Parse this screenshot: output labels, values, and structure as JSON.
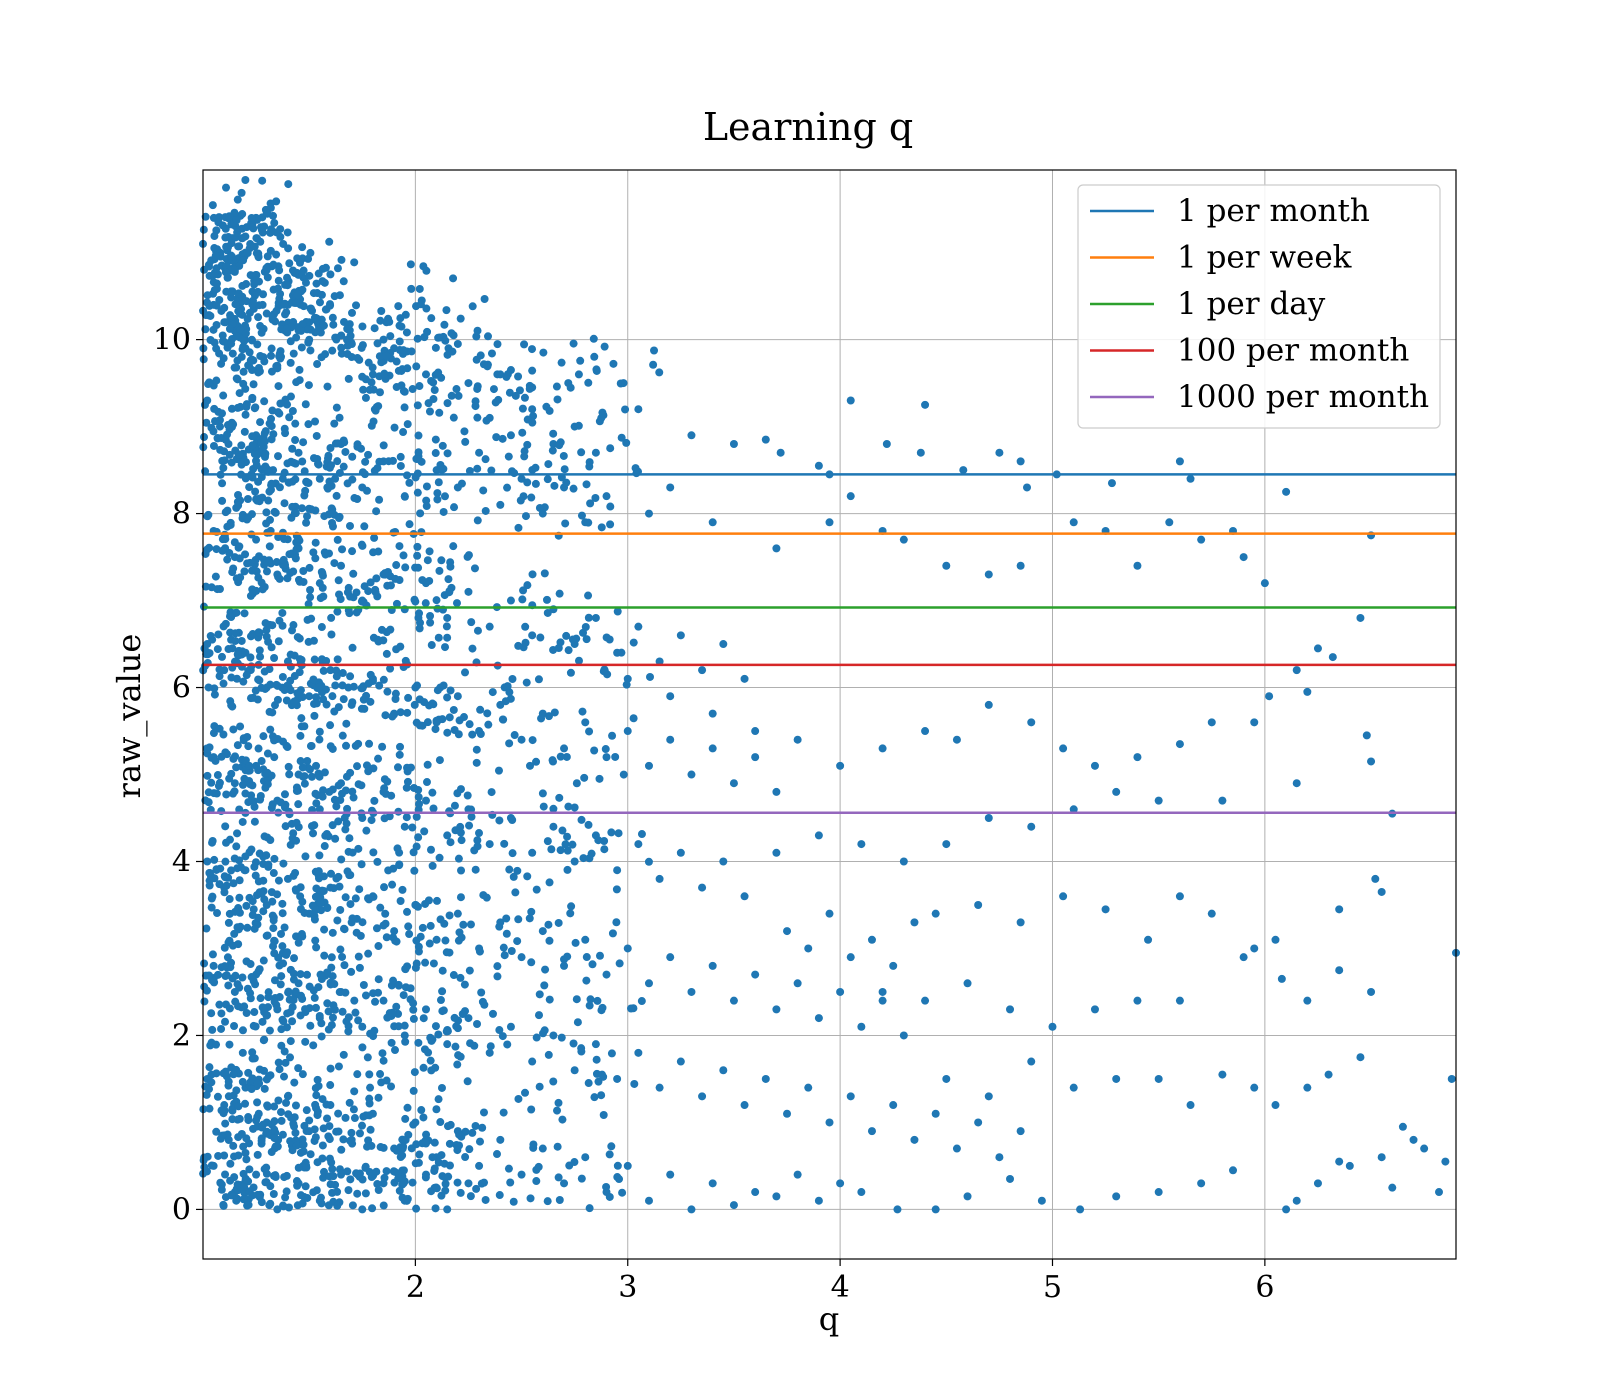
{
  "chart_data": {
    "type": "scatter",
    "title": "Learning q",
    "xlabel": "q",
    "ylabel": "raw_value",
    "xlim": [
      1.0,
      6.9
    ],
    "ylim": [
      -0.57,
      11.95
    ],
    "xticks": [
      2,
      3,
      4,
      5,
      6
    ],
    "yticks": [
      0,
      2,
      4,
      6,
      8,
      10
    ],
    "grid": true,
    "legend_position": "top-right",
    "scatter_color": "#1f77b4",
    "points": [
      [
        1.0,
        11.1
      ],
      [
        1.08,
        11.0
      ],
      [
        1.2,
        11.0
      ],
      [
        1.25,
        11.4
      ],
      [
        1.22,
        11.05
      ],
      [
        1.14,
        10.8
      ],
      [
        1.3,
        10.8
      ],
      [
        1.6,
        10.75
      ],
      [
        2.03,
        10.45
      ],
      [
        2.18,
        10.05
      ],
      [
        2.2,
        9.95
      ],
      [
        1.85,
        10.0
      ],
      [
        1.9,
        9.9
      ],
      [
        2.05,
        9.6
      ],
      [
        2.25,
        9.5
      ],
      [
        2.4,
        9.6
      ],
      [
        2.45,
        9.65
      ],
      [
        2.55,
        9.45
      ],
      [
        2.72,
        9.5
      ],
      [
        2.77,
        9.6
      ],
      [
        2.98,
        9.5
      ],
      [
        3.05,
        9.2
      ],
      [
        3.3,
        8.9
      ],
      [
        3.5,
        8.8
      ],
      [
        3.65,
        8.85
      ],
      [
        3.72,
        8.7
      ],
      [
        3.9,
        8.55
      ],
      [
        3.95,
        8.45
      ],
      [
        4.05,
        9.3
      ],
      [
        4.22,
        8.8
      ],
      [
        4.4,
        9.25
      ],
      [
        4.38,
        8.7
      ],
      [
        4.58,
        8.5
      ],
      [
        4.75,
        8.7
      ],
      [
        4.85,
        8.6
      ],
      [
        4.88,
        8.3
      ],
      [
        5.02,
        8.45
      ],
      [
        5.28,
        8.35
      ],
      [
        5.6,
        8.6
      ],
      [
        5.65,
        8.4
      ],
      [
        6.1,
        8.25
      ],
      [
        3.1,
        8.0
      ],
      [
        3.2,
        8.3
      ],
      [
        3.4,
        7.9
      ],
      [
        3.7,
        7.6
      ],
      [
        3.95,
        7.9
      ],
      [
        4.05,
        8.2
      ],
      [
        4.2,
        7.8
      ],
      [
        4.3,
        7.7
      ],
      [
        4.5,
        7.4
      ],
      [
        4.7,
        7.3
      ],
      [
        4.85,
        7.4
      ],
      [
        5.1,
        7.9
      ],
      [
        5.25,
        7.8
      ],
      [
        5.4,
        7.4
      ],
      [
        5.55,
        7.9
      ],
      [
        5.7,
        7.7
      ],
      [
        5.85,
        7.8
      ],
      [
        5.9,
        7.5
      ],
      [
        6.0,
        7.2
      ],
      [
        6.5,
        7.75
      ],
      [
        6.45,
        6.8
      ],
      [
        6.25,
        6.45
      ],
      [
        6.32,
        6.35
      ],
      [
        6.15,
        6.2
      ],
      [
        6.2,
        5.95
      ],
      [
        6.02,
        5.9
      ],
      [
        5.95,
        5.6
      ],
      [
        5.75,
        5.6
      ],
      [
        5.6,
        5.35
      ],
      [
        5.4,
        5.2
      ],
      [
        5.2,
        5.1
      ],
      [
        5.05,
        5.3
      ],
      [
        4.9,
        5.6
      ],
      [
        4.7,
        5.8
      ],
      [
        4.55,
        5.4
      ],
      [
        4.4,
        5.5
      ],
      [
        4.2,
        5.3
      ],
      [
        4.0,
        5.1
      ],
      [
        3.8,
        5.4
      ],
      [
        3.6,
        5.5
      ],
      [
        3.4,
        5.7
      ],
      [
        3.2,
        5.9
      ],
      [
        3.0,
        6.1
      ],
      [
        6.48,
        5.45
      ],
      [
        6.5,
        5.15
      ],
      [
        6.15,
        4.9
      ],
      [
        5.8,
        4.7
      ],
      [
        5.5,
        4.7
      ],
      [
        5.3,
        4.8
      ],
      [
        5.1,
        4.6
      ],
      [
        4.9,
        4.4
      ],
      [
        4.7,
        4.5
      ],
      [
        4.5,
        4.2
      ],
      [
        4.3,
        4.0
      ],
      [
        4.1,
        4.2
      ],
      [
        3.9,
        4.3
      ],
      [
        3.7,
        4.1
      ],
      [
        6.6,
        4.55
      ],
      [
        6.52,
        3.8
      ],
      [
        6.55,
        3.65
      ],
      [
        6.35,
        3.45
      ],
      [
        6.05,
        3.1
      ],
      [
        5.95,
        3.0
      ],
      [
        5.75,
        3.4
      ],
      [
        5.6,
        3.6
      ],
      [
        5.45,
        3.1
      ],
      [
        5.25,
        3.45
      ],
      [
        5.05,
        3.6
      ],
      [
        4.85,
        3.3
      ],
      [
        4.65,
        3.5
      ],
      [
        4.45,
        3.4
      ],
      [
        6.9,
        2.95
      ],
      [
        6.5,
        2.5
      ],
      [
        6.35,
        2.75
      ],
      [
        6.2,
        2.4
      ],
      [
        6.08,
        2.65
      ],
      [
        5.9,
        2.9
      ],
      [
        5.6,
        2.4
      ],
      [
        5.4,
        2.4
      ],
      [
        5.2,
        2.3
      ],
      [
        5.0,
        2.1
      ],
      [
        4.8,
        2.3
      ],
      [
        4.6,
        2.6
      ],
      [
        4.4,
        2.4
      ],
      [
        4.2,
        2.5
      ],
      [
        6.88,
        1.5
      ],
      [
        6.45,
        1.75
      ],
      [
        6.3,
        1.55
      ],
      [
        6.2,
        1.4
      ],
      [
        6.05,
        1.2
      ],
      [
        5.95,
        1.4
      ],
      [
        5.8,
        1.55
      ],
      [
        5.65,
        1.2
      ],
      [
        5.5,
        1.5
      ],
      [
        5.3,
        1.5
      ],
      [
        5.1,
        1.4
      ],
      [
        4.9,
        1.7
      ],
      [
        4.7,
        1.3
      ],
      [
        4.5,
        1.5
      ],
      [
        6.65,
        0.95
      ],
      [
        6.7,
        0.8
      ],
      [
        6.75,
        0.7
      ],
      [
        6.85,
        0.55
      ],
      [
        6.55,
        0.6
      ],
      [
        6.4,
        0.5
      ],
      [
        6.35,
        0.55
      ],
      [
        6.25,
        0.3
      ],
      [
        6.15,
        0.1
      ],
      [
        6.1,
        0.0
      ],
      [
        6.82,
        0.2
      ],
      [
        6.6,
        0.25
      ],
      [
        5.85,
        0.45
      ],
      [
        5.7,
        0.3
      ],
      [
        5.5,
        0.2
      ],
      [
        5.3,
        0.15
      ],
      [
        5.13,
        0.0
      ],
      [
        4.95,
        0.1
      ],
      [
        4.8,
        0.35
      ],
      [
        4.6,
        0.15
      ],
      [
        4.45,
        0.0
      ],
      [
        4.27,
        0.0
      ],
      [
        4.1,
        0.2
      ],
      [
        3.9,
        0.1
      ],
      [
        3.7,
        0.15
      ],
      [
        3.5,
        0.05
      ],
      [
        1.05,
        10.4
      ],
      [
        1.1,
        10.2
      ],
      [
        1.15,
        10.1
      ],
      [
        1.2,
        9.9
      ],
      [
        1.3,
        10.3
      ],
      [
        1.4,
        10.4
      ],
      [
        1.5,
        10.2
      ],
      [
        1.55,
        10.1
      ],
      [
        1.62,
        10.5
      ],
      [
        1.7,
        9.8
      ],
      [
        1.8,
        9.6
      ],
      [
        1.95,
        9.4
      ],
      [
        1.35,
        9.7
      ],
      [
        1.02,
        9.3
      ],
      [
        1.08,
        9.0
      ],
      [
        1.12,
        8.8
      ],
      [
        1.18,
        8.6
      ],
      [
        1.25,
        8.9
      ],
      [
        1.33,
        8.5
      ],
      [
        1.45,
        8.7
      ],
      [
        1.55,
        8.4
      ],
      [
        1.65,
        8.8
      ],
      [
        1.75,
        8.3
      ],
      [
        1.85,
        8.6
      ],
      [
        1.95,
        8.2
      ],
      [
        2.1,
        8.5
      ],
      [
        2.2,
        8.3
      ],
      [
        2.3,
        8.7
      ],
      [
        2.4,
        8.1
      ],
      [
        2.5,
        8.4
      ],
      [
        2.6,
        8.0
      ],
      [
        2.7,
        8.3
      ],
      [
        2.8,
        7.9
      ],
      [
        2.9,
        8.2
      ],
      [
        2.35,
        9.1
      ],
      [
        2.45,
        8.9
      ],
      [
        2.55,
        9.2
      ],
      [
        2.65,
        8.8
      ],
      [
        2.75,
        9.0
      ],
      [
        2.85,
        8.7
      ],
      [
        1.05,
        7.8
      ],
      [
        1.15,
        7.5
      ],
      [
        1.25,
        7.7
      ],
      [
        1.35,
        7.3
      ],
      [
        1.45,
        7.6
      ],
      [
        1.55,
        7.2
      ],
      [
        1.65,
        7.4
      ],
      [
        1.75,
        7.0
      ],
      [
        1.85,
        7.3
      ],
      [
        1.95,
        6.9
      ],
      [
        2.05,
        7.2
      ],
      [
        2.15,
        6.8
      ],
      [
        2.25,
        7.1
      ],
      [
        2.35,
        6.7
      ],
      [
        2.45,
        7.0
      ],
      [
        2.55,
        6.6
      ],
      [
        2.65,
        6.9
      ],
      [
        2.75,
        6.5
      ],
      [
        2.85,
        6.8
      ],
      [
        2.95,
        6.4
      ],
      [
        3.05,
        6.7
      ],
      [
        3.15,
        6.3
      ],
      [
        3.25,
        6.6
      ],
      [
        3.35,
        6.2
      ],
      [
        3.45,
        6.5
      ],
      [
        3.55,
        6.1
      ],
      [
        1.02,
        6.5
      ],
      [
        1.1,
        6.2
      ],
      [
        1.2,
        6.4
      ],
      [
        1.3,
        6.0
      ],
      [
        1.4,
        6.3
      ],
      [
        1.5,
        5.9
      ],
      [
        1.6,
        6.2
      ],
      [
        1.7,
        5.8
      ],
      [
        1.8,
        6.1
      ],
      [
        1.9,
        5.7
      ],
      [
        2.0,
        6.0
      ],
      [
        2.1,
        5.6
      ],
      [
        2.2,
        5.9
      ],
      [
        2.3,
        5.5
      ],
      [
        2.4,
        5.8
      ],
      [
        2.5,
        5.4
      ],
      [
        2.6,
        5.7
      ],
      [
        2.7,
        5.3
      ],
      [
        2.8,
        5.6
      ],
      [
        2.9,
        5.2
      ],
      [
        3.0,
        5.5
      ],
      [
        3.1,
        5.1
      ],
      [
        3.2,
        5.4
      ],
      [
        3.3,
        5.0
      ],
      [
        3.4,
        5.3
      ],
      [
        3.5,
        4.9
      ],
      [
        3.6,
        5.2
      ],
      [
        3.7,
        4.8
      ],
      [
        1.05,
        5.2
      ],
      [
        1.15,
        4.9
      ],
      [
        1.25,
        5.1
      ],
      [
        1.35,
        4.7
      ],
      [
        1.45,
        5.0
      ],
      [
        1.55,
        4.6
      ],
      [
        1.65,
        4.9
      ],
      [
        1.75,
        4.5
      ],
      [
        1.85,
        4.8
      ],
      [
        1.95,
        4.4
      ],
      [
        2.05,
        4.7
      ],
      [
        2.15,
        4.3
      ],
      [
        2.25,
        4.6
      ],
      [
        2.35,
        4.2
      ],
      [
        2.45,
        4.5
      ],
      [
        2.55,
        4.1
      ],
      [
        2.65,
        4.4
      ],
      [
        2.75,
        4.0
      ],
      [
        2.85,
        4.3
      ],
      [
        2.95,
        3.9
      ],
      [
        3.05,
        4.2
      ],
      [
        3.15,
        3.8
      ],
      [
        3.25,
        4.1
      ],
      [
        3.35,
        3.7
      ],
      [
        3.45,
        4.0
      ],
      [
        3.55,
        3.6
      ],
      [
        1.02,
        4.0
      ],
      [
        1.1,
        3.7
      ],
      [
        1.2,
        3.9
      ],
      [
        1.3,
        3.5
      ],
      [
        1.4,
        3.8
      ],
      [
        1.5,
        3.4
      ],
      [
        1.6,
        3.7
      ],
      [
        1.7,
        3.3
      ],
      [
        1.8,
        3.6
      ],
      [
        1.9,
        3.2
      ],
      [
        2.0,
        3.5
      ],
      [
        2.1,
        3.1
      ],
      [
        2.2,
        3.4
      ],
      [
        2.3,
        3.0
      ],
      [
        2.4,
        3.3
      ],
      [
        2.5,
        2.9
      ],
      [
        2.6,
        3.2
      ],
      [
        2.7,
        2.8
      ],
      [
        2.8,
        3.1
      ],
      [
        2.9,
        2.7
      ],
      [
        3.0,
        3.0
      ],
      [
        3.1,
        2.6
      ],
      [
        3.2,
        2.9
      ],
      [
        3.3,
        2.5
      ],
      [
        3.4,
        2.8
      ],
      [
        3.5,
        2.4
      ],
      [
        3.6,
        2.7
      ],
      [
        3.7,
        2.3
      ],
      [
        3.8,
        2.6
      ],
      [
        3.9,
        2.2
      ],
      [
        4.0,
        2.5
      ],
      [
        4.1,
        2.1
      ],
      [
        4.2,
        2.4
      ],
      [
        4.3,
        2.0
      ],
      [
        3.75,
        3.2
      ],
      [
        3.85,
        3.0
      ],
      [
        3.95,
        3.4
      ],
      [
        4.05,
        2.9
      ],
      [
        4.15,
        3.1
      ],
      [
        4.25,
        2.8
      ],
      [
        4.35,
        3.3
      ],
      [
        1.05,
        2.8
      ],
      [
        1.15,
        2.5
      ],
      [
        1.25,
        2.7
      ],
      [
        1.35,
        2.3
      ],
      [
        1.45,
        2.6
      ],
      [
        1.55,
        2.2
      ],
      [
        1.65,
        2.5
      ],
      [
        1.75,
        2.1
      ],
      [
        1.85,
        2.4
      ],
      [
        1.95,
        2.0
      ],
      [
        2.05,
        2.3
      ],
      [
        2.15,
        1.9
      ],
      [
        2.25,
        2.2
      ],
      [
        2.35,
        1.8
      ],
      [
        2.45,
        2.1
      ],
      [
        2.55,
        1.7
      ],
      [
        2.65,
        2.0
      ],
      [
        2.75,
        1.6
      ],
      [
        2.85,
        1.9
      ],
      [
        2.95,
        1.5
      ],
      [
        3.05,
        1.8
      ],
      [
        3.15,
        1.4
      ],
      [
        3.25,
        1.7
      ],
      [
        3.35,
        1.3
      ],
      [
        3.45,
        1.6
      ],
      [
        3.55,
        1.2
      ],
      [
        3.65,
        1.5
      ],
      [
        3.75,
        1.1
      ],
      [
        3.85,
        1.4
      ],
      [
        3.95,
        1.0
      ],
      [
        4.05,
        1.3
      ],
      [
        4.15,
        0.9
      ],
      [
        4.25,
        1.2
      ],
      [
        4.35,
        0.8
      ],
      [
        4.45,
        1.1
      ],
      [
        4.55,
        0.7
      ],
      [
        4.65,
        1.0
      ],
      [
        4.75,
        0.6
      ],
      [
        4.85,
        0.9
      ],
      [
        1.02,
        1.5
      ],
      [
        1.1,
        1.2
      ],
      [
        1.2,
        1.4
      ],
      [
        1.3,
        1.0
      ],
      [
        1.4,
        1.3
      ],
      [
        1.5,
        0.9
      ],
      [
        1.6,
        1.2
      ],
      [
        1.7,
        0.8
      ],
      [
        1.8,
        1.1
      ],
      [
        1.9,
        0.7
      ],
      [
        2.0,
        1.0
      ],
      [
        2.1,
        0.6
      ],
      [
        2.2,
        0.9
      ],
      [
        2.3,
        0.5
      ],
      [
        2.4,
        0.8
      ],
      [
        2.5,
        0.4
      ],
      [
        2.6,
        0.7
      ],
      [
        2.7,
        0.3
      ],
      [
        2.8,
        0.6
      ],
      [
        2.9,
        0.2
      ],
      [
        3.0,
        0.5
      ],
      [
        3.1,
        0.1
      ],
      [
        3.2,
        0.4
      ],
      [
        3.3,
        0.0
      ],
      [
        3.4,
        0.3
      ],
      [
        3.6,
        0.2
      ],
      [
        3.8,
        0.4
      ],
      [
        4.0,
        0.3
      ],
      [
        1.05,
        0.5
      ],
      [
        1.15,
        0.2
      ],
      [
        1.25,
        0.4
      ],
      [
        1.35,
        0.0
      ],
      [
        1.45,
        0.3
      ],
      [
        1.55,
        0.1
      ],
      [
        1.65,
        0.4
      ],
      [
        1.75,
        0.0
      ],
      [
        1.85,
        0.3
      ],
      [
        1.95,
        0.1
      ],
      [
        2.05,
        0.4
      ],
      [
        2.15,
        0.0
      ],
      [
        2.25,
        0.3
      ]
    ],
    "series": [
      {
        "name": "1 per month",
        "y": 8.45,
        "color": "#1f77b4"
      },
      {
        "name": "1 per week",
        "y": 7.77,
        "color": "#ff7f0e"
      },
      {
        "name": "1 per day",
        "y": 6.92,
        "color": "#2ca02c"
      },
      {
        "name": "100 per month",
        "y": 6.26,
        "color": "#d62728"
      },
      {
        "name": "1000 per month",
        "y": 4.56,
        "color": "#9467bd"
      }
    ]
  }
}
